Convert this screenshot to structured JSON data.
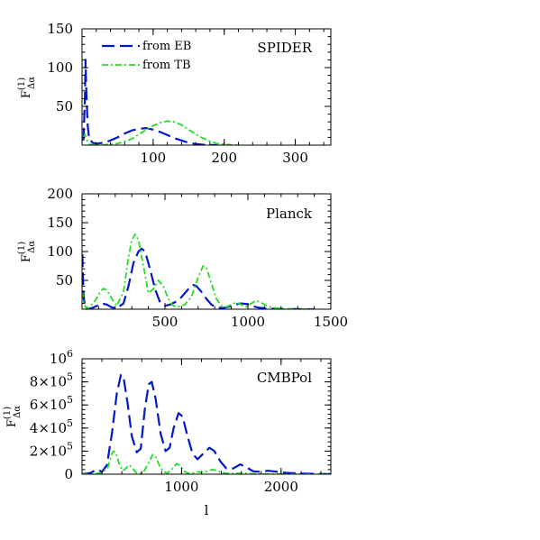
{
  "colors": {
    "eb": "#0018cc",
    "tb": "#22dd22",
    "axis": "#000000"
  },
  "chart_data": [
    {
      "type": "line",
      "label": "SPIDER",
      "ylabel": "F",
      "ylabel_sup": "(1)",
      "ylabel_sub": "Δα",
      "xlim": [
        0,
        350
      ],
      "ylim": [
        0,
        150
      ],
      "xticks": [
        100,
        200,
        300
      ],
      "yticks": [
        50,
        100,
        150
      ],
      "legend": {
        "position": "top-left",
        "entries": [
          "from EB",
          "from TB"
        ]
      },
      "series": [
        {
          "name": "from EB",
          "style": "dashed",
          "points": [
            [
              2,
              6
            ],
            [
              4,
              60
            ],
            [
              5,
              110
            ],
            [
              6,
              70
            ],
            [
              8,
              25
            ],
            [
              10,
              8
            ],
            [
              15,
              3
            ],
            [
              20,
              2
            ],
            [
              30,
              3
            ],
            [
              40,
              6
            ],
            [
              50,
              10
            ],
            [
              60,
              15
            ],
            [
              70,
              19
            ],
            [
              80,
              21
            ],
            [
              90,
              22
            ],
            [
              100,
              20
            ],
            [
              110,
              17
            ],
            [
              120,
              13
            ],
            [
              130,
              9
            ],
            [
              140,
              6
            ],
            [
              150,
              3
            ],
            [
              160,
              1.5
            ],
            [
              170,
              0.6
            ],
            [
              180,
              0.2
            ],
            [
              190,
              0
            ]
          ]
        },
        {
          "name": "from TB",
          "style": "dash-dot",
          "points": [
            [
              2,
              10
            ],
            [
              4,
              14
            ],
            [
              6,
              9
            ],
            [
              8,
              4
            ],
            [
              10,
              1
            ],
            [
              15,
              0.3
            ],
            [
              30,
              0.3
            ],
            [
              50,
              2
            ],
            [
              70,
              8
            ],
            [
              80,
              14
            ],
            [
              90,
              20
            ],
            [
              100,
              25
            ],
            [
              110,
              29
            ],
            [
              120,
              31
            ],
            [
              130,
              30
            ],
            [
              140,
              26
            ],
            [
              150,
              20
            ],
            [
              160,
              14
            ],
            [
              170,
              9
            ],
            [
              180,
              5
            ],
            [
              190,
              2
            ],
            [
              200,
              1
            ],
            [
              210,
              0.3
            ],
            [
              220,
              0
            ]
          ]
        }
      ]
    },
    {
      "type": "line",
      "label": "Planck",
      "ylabel": "F",
      "ylabel_sup": "(1)",
      "ylabel_sub": "Δα",
      "xlim": [
        0,
        1500
      ],
      "ylim": [
        0,
        200
      ],
      "xticks": [
        500,
        1000,
        1500
      ],
      "yticks": [
        50,
        100,
        150,
        200
      ],
      "series": [
        {
          "name": "from EB",
          "style": "dashed",
          "points": [
            [
              2,
              95
            ],
            [
              5,
              60
            ],
            [
              10,
              20
            ],
            [
              20,
              3
            ],
            [
              40,
              1
            ],
            [
              60,
              2
            ],
            [
              90,
              6
            ],
            [
              120,
              10
            ],
            [
              150,
              8
            ],
            [
              180,
              3
            ],
            [
              210,
              2
            ],
            [
              250,
              10
            ],
            [
              280,
              40
            ],
            [
              310,
              80
            ],
            [
              340,
              100
            ],
            [
              360,
              105
            ],
            [
              380,
              100
            ],
            [
              410,
              70
            ],
            [
              440,
              35
            ],
            [
              470,
              12
            ],
            [
              500,
              6
            ],
            [
              530,
              8
            ],
            [
              560,
              12
            ],
            [
              590,
              18
            ],
            [
              620,
              28
            ],
            [
              650,
              38
            ],
            [
              670,
              42
            ],
            [
              690,
              40
            ],
            [
              720,
              30
            ],
            [
              750,
              18
            ],
            [
              780,
              8
            ],
            [
              810,
              3
            ],
            [
              850,
              2
            ],
            [
              880,
              4
            ],
            [
              920,
              8
            ],
            [
              960,
              10
            ],
            [
              990,
              9
            ],
            [
              1020,
              6
            ],
            [
              1060,
              3
            ],
            [
              1100,
              1.5
            ],
            [
              1200,
              0.5
            ],
            [
              1300,
              0.2
            ],
            [
              1400,
              0
            ]
          ]
        },
        {
          "name": "from TB",
          "style": "dash-dot",
          "points": [
            [
              2,
              30
            ],
            [
              10,
              12
            ],
            [
              20,
              4
            ],
            [
              40,
              2
            ],
            [
              80,
              15
            ],
            [
              110,
              30
            ],
            [
              130,
              36
            ],
            [
              150,
              33
            ],
            [
              180,
              18
            ],
            [
              210,
              6
            ],
            [
              250,
              30
            ],
            [
              280,
              90
            ],
            [
              300,
              120
            ],
            [
              320,
              130
            ],
            [
              340,
              120
            ],
            [
              370,
              75
            ],
            [
              400,
              28
            ],
            [
              430,
              35
            ],
            [
              460,
              50
            ],
            [
              490,
              40
            ],
            [
              520,
              18
            ],
            [
              550,
              6
            ],
            [
              580,
              4
            ],
            [
              620,
              8
            ],
            [
              660,
              22
            ],
            [
              700,
              55
            ],
            [
              730,
              75
            ],
            [
              750,
              72
            ],
            [
              780,
              45
            ],
            [
              810,
              18
            ],
            [
              840,
              6
            ],
            [
              870,
              4
            ],
            [
              900,
              8
            ],
            [
              930,
              12
            ],
            [
              960,
              8
            ],
            [
              990,
              4
            ],
            [
              1020,
              10
            ],
            [
              1050,
              15
            ],
            [
              1070,
              13
            ],
            [
              1100,
              8
            ],
            [
              1140,
              3
            ],
            [
              1200,
              1
            ],
            [
              1300,
              0.3
            ],
            [
              1400,
              0
            ]
          ]
        }
      ]
    },
    {
      "type": "line",
      "label": "CMBPol",
      "ylabel": "F",
      "ylabel_sup": "(1)",
      "ylabel_sub": "Δα",
      "xlabel": "l",
      "xlim": [
        0,
        2500
      ],
      "ylim": [
        0,
        1000000
      ],
      "xticks": [
        1000,
        2000
      ],
      "yticks": [
        0,
        200000,
        400000,
        600000,
        800000,
        1000000
      ],
      "ytick_labels": [
        {
          "mantissa": "0",
          "exponent": ""
        },
        {
          "mantissa": "2×10",
          "exponent": "5"
        },
        {
          "mantissa": "4×10",
          "exponent": "5"
        },
        {
          "mantissa": "6×10",
          "exponent": "5"
        },
        {
          "mantissa": "8×10",
          "exponent": "5"
        },
        {
          "mantissa": "10",
          "exponent": "6"
        }
      ],
      "series": [
        {
          "name": "from EB",
          "style": "dashed",
          "points": [
            [
              2,
              0
            ],
            [
              80,
              10000
            ],
            [
              150,
              40000
            ],
            [
              200,
              20000
            ],
            [
              250,
              80000
            ],
            [
              300,
              350000
            ],
            [
              350,
              700000
            ],
            [
              390,
              860000
            ],
            [
              420,
              820000
            ],
            [
              460,
              600000
            ],
            [
              500,
              330000
            ],
            [
              550,
              190000
            ],
            [
              590,
              220000
            ],
            [
              630,
              560000
            ],
            [
              670,
              780000
            ],
            [
              700,
              800000
            ],
            [
              740,
              650000
            ],
            [
              790,
              350000
            ],
            [
              840,
              200000
            ],
            [
              880,
              230000
            ],
            [
              920,
              400000
            ],
            [
              970,
              530000
            ],
            [
              1010,
              500000
            ],
            [
              1060,
              330000
            ],
            [
              1110,
              180000
            ],
            [
              1160,
              130000
            ],
            [
              1220,
              180000
            ],
            [
              1280,
              230000
            ],
            [
              1330,
              200000
            ],
            [
              1390,
              110000
            ],
            [
              1450,
              50000
            ],
            [
              1520,
              50000
            ],
            [
              1590,
              85000
            ],
            [
              1650,
              60000
            ],
            [
              1720,
              25000
            ],
            [
              1800,
              20000
            ],
            [
              1870,
              30000
            ],
            [
              1950,
              22000
            ],
            [
              2050,
              12000
            ],
            [
              2200,
              6000
            ],
            [
              2350,
              3000
            ],
            [
              2500,
              1000
            ]
          ]
        },
        {
          "name": "from TB",
          "style": "dash-dot",
          "points": [
            [
              2,
              0
            ],
            [
              100,
              3000
            ],
            [
              200,
              10000
            ],
            [
              260,
              60000
            ],
            [
              300,
              180000
            ],
            [
              320,
              200000
            ],
            [
              350,
              160000
            ],
            [
              380,
              70000
            ],
            [
              410,
              30000
            ],
            [
              440,
              50000
            ],
            [
              470,
              80000
            ],
            [
              500,
              60000
            ],
            [
              540,
              15000
            ],
            [
              580,
              6000
            ],
            [
              620,
              20000
            ],
            [
              670,
              100000
            ],
            [
              710,
              170000
            ],
            [
              740,
              150000
            ],
            [
              780,
              70000
            ],
            [
              820,
              20000
            ],
            [
              860,
              10000
            ],
            [
              900,
              40000
            ],
            [
              950,
              90000
            ],
            [
              980,
              80000
            ],
            [
              1020,
              30000
            ],
            [
              1060,
              10000
            ],
            [
              1120,
              10000
            ],
            [
              1160,
              20000
            ],
            [
              1200,
              15000
            ],
            [
              1260,
              25000
            ],
            [
              1310,
              40000
            ],
            [
              1360,
              30000
            ],
            [
              1420,
              10000
            ],
            [
              1500,
              5000
            ],
            [
              1600,
              8000
            ],
            [
              1700,
              4000
            ],
            [
              1800,
              1500
            ],
            [
              2000,
              500
            ],
            [
              2500,
              0
            ]
          ]
        }
      ]
    }
  ]
}
